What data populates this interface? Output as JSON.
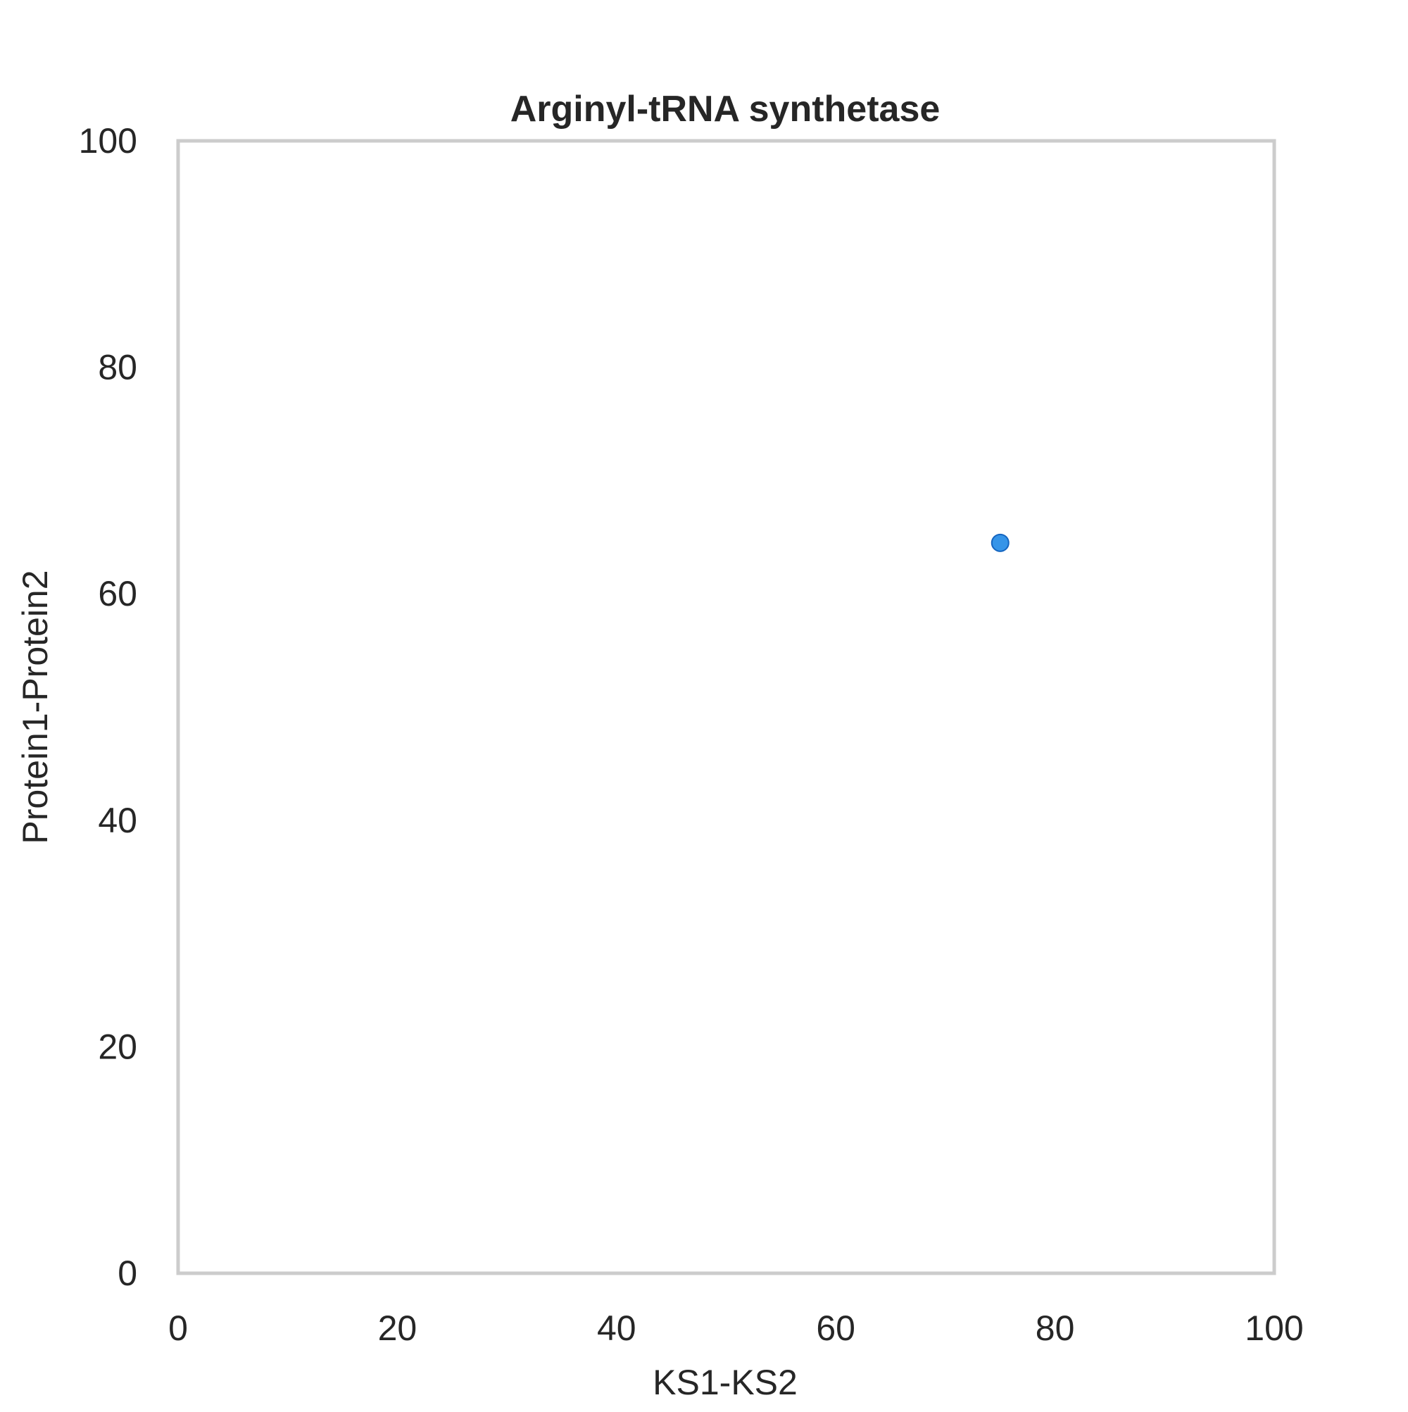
{
  "chart_data": {
    "type": "scatter",
    "title": "Arginyl-tRNA synthetase",
    "xlabel": "KS1-KS2",
    "ylabel": "Protein1-Protein2",
    "xlim": [
      0,
      100
    ],
    "ylim": [
      0,
      100
    ],
    "xticks": [
      "0",
      "20",
      "40",
      "60",
      "80",
      "100"
    ],
    "yticks": [
      "0",
      "20",
      "40",
      "60",
      "80",
      "100"
    ],
    "grid": false,
    "legend": "none",
    "point_color": "#1f88e5",
    "frame_color": "#cccccc",
    "points": [
      {
        "x": 75,
        "y": 64.5
      }
    ]
  }
}
